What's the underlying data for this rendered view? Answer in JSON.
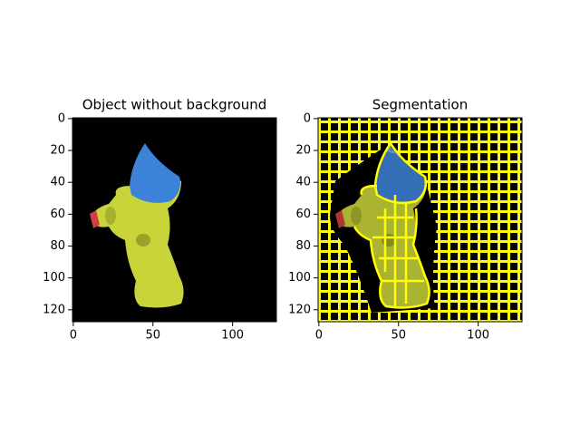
{
  "chart_data": [
    {
      "type": "image",
      "title": "Object without background",
      "xlim": [
        -0.5,
        127.5
      ],
      "ylim": [
        127.5,
        -0.5
      ],
      "xticks": [
        0,
        50,
        100
      ],
      "yticks": [
        0,
        20,
        40,
        60,
        80,
        100,
        120
      ]
    },
    {
      "type": "image",
      "title": "Segmentation",
      "xlim": [
        -0.5,
        127.5
      ],
      "ylim": [
        127.5,
        -0.5
      ],
      "xticks": [
        0,
        50,
        100
      ],
      "yticks": [
        0,
        20,
        40,
        60,
        80,
        100,
        120
      ]
    }
  ]
}
